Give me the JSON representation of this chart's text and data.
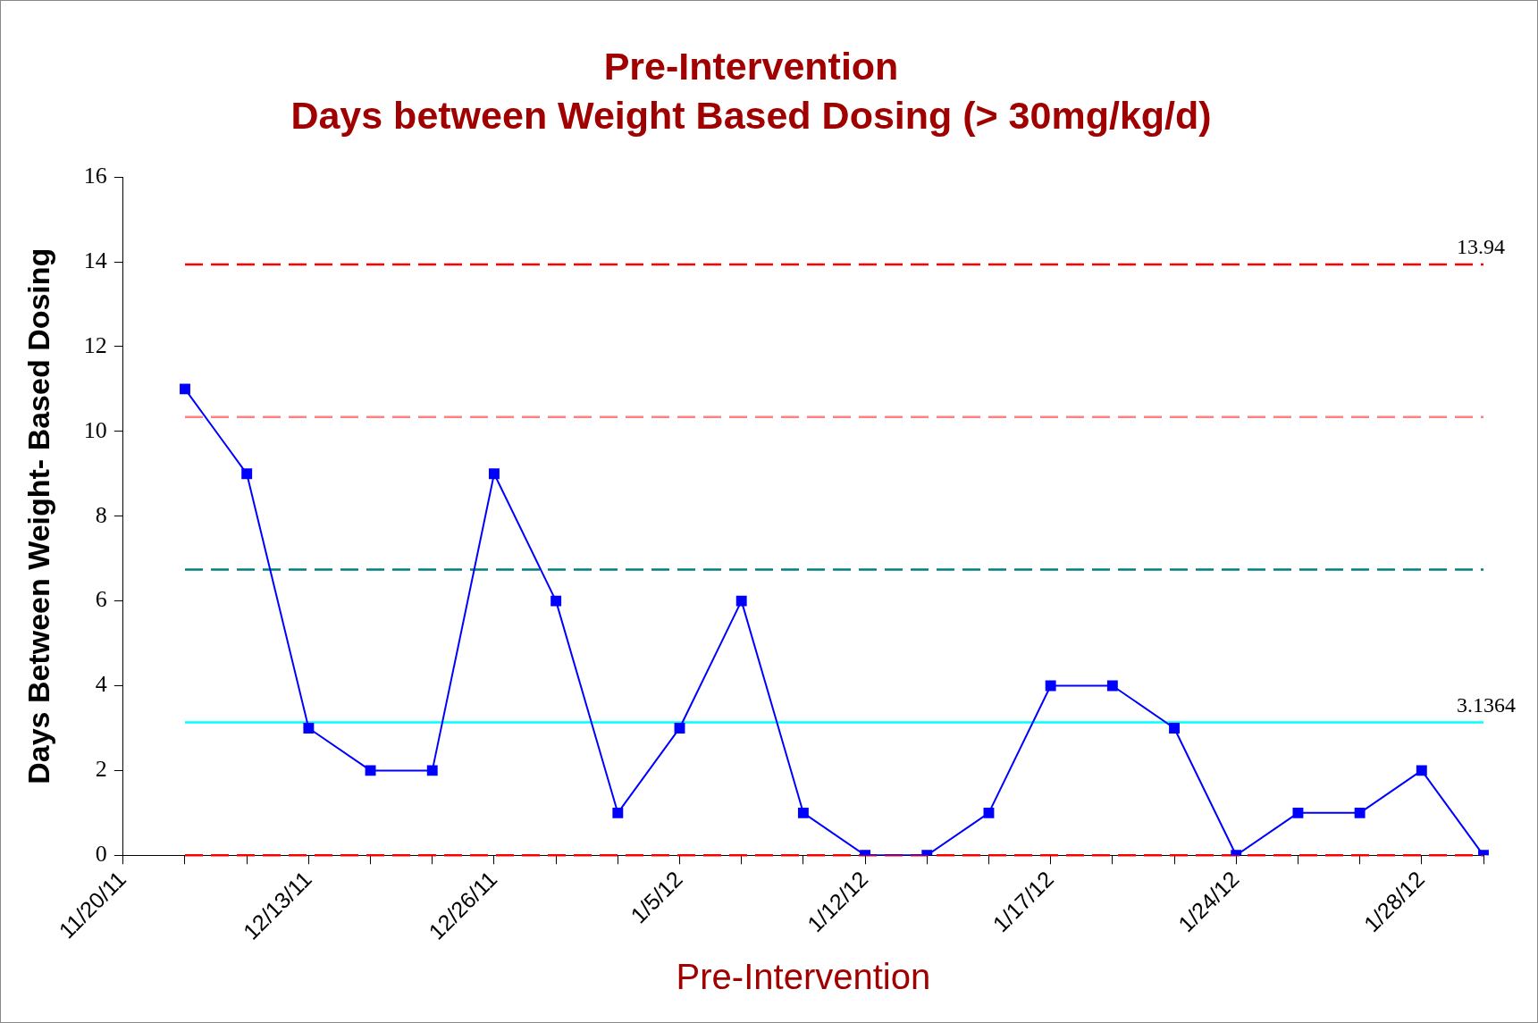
{
  "chart_data": {
    "type": "line",
    "title": "Pre-Intervention",
    "subtitle": "Days between Weight Based Dosing (> 30mg/kg/d)",
    "xlabel": "Pre-Intervention",
    "ylabel": "Days Between Weight- Based Dosing",
    "categories": [
      "11/20/11",
      null,
      null,
      "12/13/11",
      null,
      null,
      "12/26/11",
      null,
      null,
      "1/5/12",
      null,
      null,
      "1/12/12",
      null,
      null,
      "1/17/12",
      null,
      null,
      "1/24/12",
      null,
      null,
      "1/28/12",
      null
    ],
    "series": [
      {
        "color": "#0000ff",
        "values": [
          null,
          11,
          9,
          3,
          2,
          2,
          9,
          6,
          1,
          3,
          6,
          1,
          0,
          0,
          1,
          4,
          4,
          3,
          0,
          1,
          1,
          2,
          0
        ]
      }
    ],
    "ylim": [
      0,
      16
    ],
    "yticks": [
      0,
      2,
      4,
      6,
      8,
      10,
      12,
      14,
      16
    ],
    "grid": false,
    "legend": false,
    "marker": "square",
    "line_style": "solid",
    "ref_lines": [
      {
        "axis": "y",
        "value": 13.94,
        "label": "13.94",
        "color": "#ff0000",
        "line_style": "dashed"
      },
      {
        "axis": "y",
        "value": 10.34,
        "label": null,
        "color": "#ff8080",
        "line_style": "dashed"
      },
      {
        "axis": "y",
        "value": 6.74,
        "label": null,
        "color": "#008080",
        "line_style": "dashed"
      },
      {
        "axis": "y",
        "value": 3.1364,
        "label": "3.1364",
        "color": "#00ffff",
        "line_style": "solid"
      },
      {
        "axis": "y",
        "value": 0,
        "label": null,
        "color": "#ff0000",
        "line_style": "dashed"
      }
    ]
  }
}
